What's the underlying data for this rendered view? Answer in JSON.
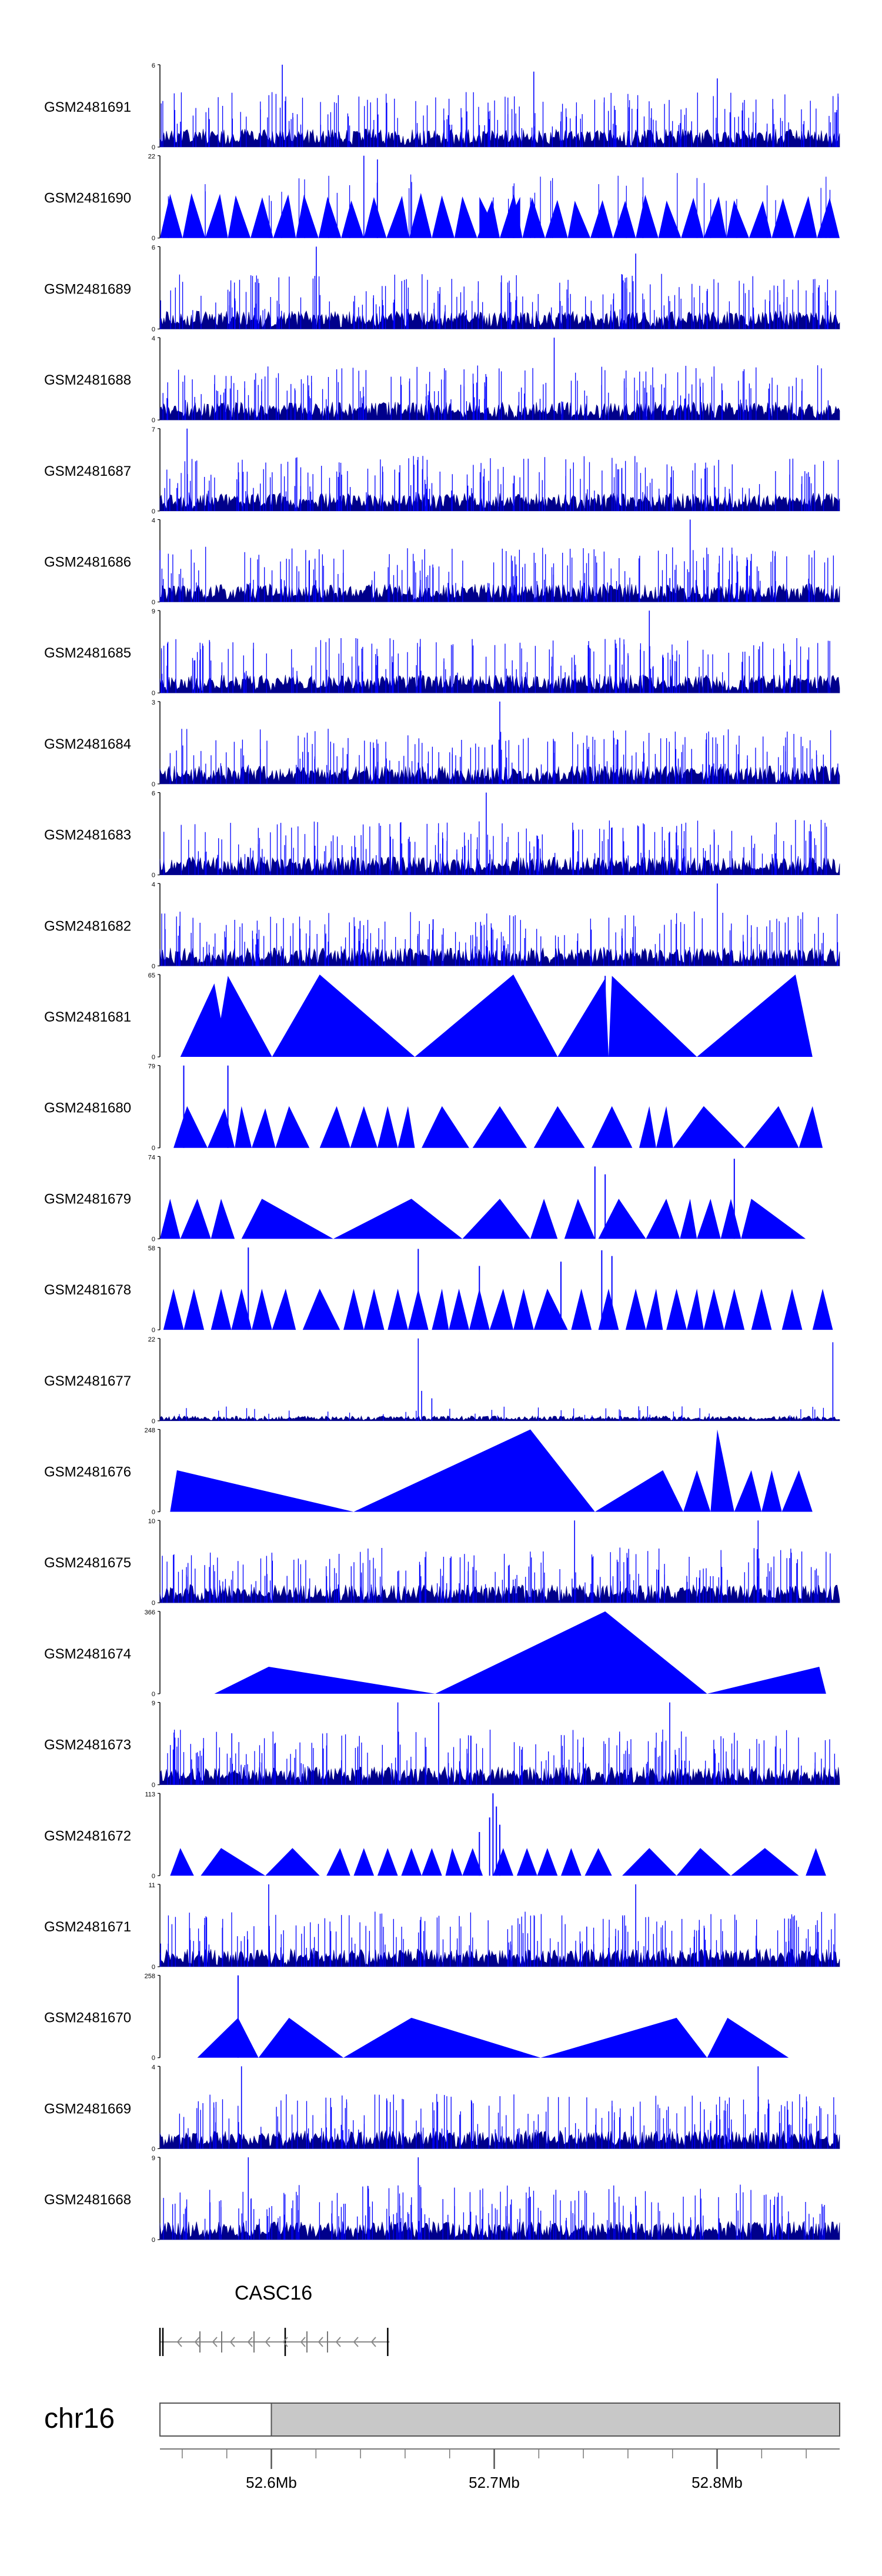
{
  "chart_data": {
    "type": "area",
    "title": "",
    "tracks": [
      {
        "name": "GSM2481691",
        "ymax": "6",
        "ymin": "0",
        "style": "dense",
        "peaks": [
          [
            0.18,
            6
          ],
          [
            0.55,
            5.5
          ],
          [
            0.82,
            5
          ]
        ]
      },
      {
        "name": "GSM2481690",
        "ymax": "22",
        "ymin": "0",
        "style": "sparse",
        "nseg": 30,
        "peaks": [
          [
            0.3,
            22
          ],
          [
            0.32,
            21
          ]
        ],
        "gap": [
          0.47,
          0.53
        ]
      },
      {
        "name": "GSM2481689",
        "ymax": "6",
        "ymin": "0",
        "style": "dense",
        "peaks": [
          [
            0.23,
            6
          ],
          [
            0.7,
            5.5
          ]
        ]
      },
      {
        "name": "GSM2481688",
        "ymax": "4",
        "ymin": "0",
        "style": "dense",
        "peaks": [
          [
            0.58,
            4
          ]
        ]
      },
      {
        "name": "GSM2481687",
        "ymax": "7",
        "ymin": "0",
        "style": "dense",
        "peaks": [
          [
            0.04,
            7
          ]
        ]
      },
      {
        "name": "GSM2481686",
        "ymax": "4",
        "ymin": "0",
        "style": "dense",
        "peaks": [
          [
            0.78,
            4
          ]
        ]
      },
      {
        "name": "GSM2481685",
        "ymax": "9",
        "ymin": "0",
        "style": "dense",
        "peaks": [
          [
            0.72,
            9
          ]
        ]
      },
      {
        "name": "GSM2481684",
        "ymax": "3",
        "ymin": "0",
        "style": "dense",
        "peaks": [
          [
            0.5,
            3
          ]
        ]
      },
      {
        "name": "GSM2481683",
        "ymax": "6",
        "ymin": "0",
        "style": "dense",
        "peaks": [
          [
            0.48,
            6
          ]
        ]
      },
      {
        "name": "GSM2481682",
        "ymax": "4",
        "ymin": "0",
        "style": "dense",
        "peaks": [
          [
            0.82,
            4
          ]
        ]
      },
      {
        "name": "GSM2481681",
        "ymax": "65",
        "ymin": "0",
        "style": "tri",
        "tris": [
          [
            0.03,
            0.08,
            0.1,
            58
          ],
          [
            0.08,
            0.1,
            0.165,
            64
          ],
          [
            0.165,
            0.235,
            0.375,
            65
          ],
          [
            0.375,
            0.52,
            0.585,
            65
          ],
          [
            0.585,
            0.655,
            0.66,
            62
          ],
          [
            0.66,
            0.665,
            0.79,
            64
          ],
          [
            0.79,
            0.935,
            0.96,
            65
          ]
        ],
        "spikes": [
          [
            0.655,
            64
          ]
        ]
      },
      {
        "name": "GSM2481680",
        "ymax": "79",
        "ymin": "0",
        "style": "tri",
        "tris": [
          [
            0.02,
            0.04,
            0.07,
            40
          ],
          [
            0.07,
            0.095,
            0.11,
            38
          ],
          [
            0.11,
            0.12,
            0.135,
            40
          ],
          [
            0.135,
            0.155,
            0.17,
            38
          ],
          [
            0.17,
            0.19,
            0.22,
            40
          ],
          [
            0.235,
            0.26,
            0.28,
            40
          ],
          [
            0.28,
            0.3,
            0.32,
            40
          ],
          [
            0.32,
            0.335,
            0.35,
            40
          ],
          [
            0.35,
            0.365,
            0.375,
            40
          ],
          [
            0.385,
            0.415,
            0.455,
            40
          ],
          [
            0.46,
            0.5,
            0.54,
            40
          ],
          [
            0.55,
            0.585,
            0.625,
            40
          ],
          [
            0.635,
            0.665,
            0.695,
            40
          ],
          [
            0.705,
            0.72,
            0.73,
            40
          ],
          [
            0.73,
            0.745,
            0.755,
            40
          ],
          [
            0.755,
            0.8,
            0.86,
            40
          ],
          [
            0.86,
            0.91,
            0.94,
            40
          ],
          [
            0.94,
            0.96,
            0.975,
            40
          ]
        ],
        "spikes": [
          [
            0.035,
            79
          ],
          [
            0.1,
            79
          ]
        ]
      },
      {
        "name": "GSM2481679",
        "ymax": "74",
        "ymin": "0",
        "style": "tri",
        "tris": [
          [
            0.0,
            0.015,
            0.03,
            36
          ],
          [
            0.03,
            0.055,
            0.075,
            36
          ],
          [
            0.075,
            0.09,
            0.11,
            36
          ],
          [
            0.12,
            0.15,
            0.255,
            36
          ],
          [
            0.255,
            0.37,
            0.445,
            36
          ],
          [
            0.445,
            0.5,
            0.545,
            36
          ],
          [
            0.545,
            0.565,
            0.585,
            36
          ],
          [
            0.595,
            0.615,
            0.64,
            36
          ],
          [
            0.645,
            0.675,
            0.715,
            36
          ],
          [
            0.715,
            0.745,
            0.765,
            36
          ],
          [
            0.765,
            0.78,
            0.79,
            36
          ],
          [
            0.79,
            0.81,
            0.825,
            36
          ],
          [
            0.825,
            0.84,
            0.855,
            36
          ],
          [
            0.855,
            0.87,
            0.95,
            36
          ]
        ],
        "spikes": [
          [
            0.64,
            65
          ],
          [
            0.655,
            58
          ],
          [
            0.845,
            72
          ]
        ]
      },
      {
        "name": "GSM2481678",
        "ymax": "58",
        "ymin": "0",
        "style": "tri",
        "tris": [
          [
            0.005,
            0.02,
            0.035,
            29
          ],
          [
            0.035,
            0.05,
            0.065,
            29
          ],
          [
            0.075,
            0.09,
            0.105,
            29
          ],
          [
            0.105,
            0.12,
            0.135,
            29
          ],
          [
            0.135,
            0.15,
            0.165,
            29
          ],
          [
            0.165,
            0.185,
            0.2,
            29
          ],
          [
            0.21,
            0.235,
            0.265,
            29
          ],
          [
            0.27,
            0.285,
            0.3,
            29
          ],
          [
            0.3,
            0.315,
            0.33,
            29
          ],
          [
            0.335,
            0.35,
            0.365,
            29
          ],
          [
            0.365,
            0.38,
            0.395,
            29
          ],
          [
            0.4,
            0.415,
            0.425,
            29
          ],
          [
            0.425,
            0.44,
            0.455,
            29
          ],
          [
            0.455,
            0.47,
            0.485,
            29
          ],
          [
            0.485,
            0.505,
            0.52,
            29
          ],
          [
            0.52,
            0.535,
            0.55,
            29
          ],
          [
            0.55,
            0.57,
            0.6,
            29
          ],
          [
            0.605,
            0.62,
            0.635,
            29
          ],
          [
            0.645,
            0.66,
            0.675,
            29
          ],
          [
            0.685,
            0.7,
            0.715,
            29
          ],
          [
            0.715,
            0.73,
            0.74,
            29
          ],
          [
            0.745,
            0.76,
            0.775,
            29
          ],
          [
            0.775,
            0.79,
            0.8,
            29
          ],
          [
            0.8,
            0.815,
            0.83,
            29
          ],
          [
            0.83,
            0.845,
            0.86,
            29
          ],
          [
            0.87,
            0.885,
            0.9,
            29
          ],
          [
            0.915,
            0.93,
            0.945,
            29
          ],
          [
            0.96,
            0.975,
            0.99,
            29
          ]
        ],
        "spikes": [
          [
            0.13,
            58
          ],
          [
            0.38,
            57
          ],
          [
            0.47,
            45
          ],
          [
            0.59,
            48
          ],
          [
            0.65,
            56
          ],
          [
            0.665,
            52
          ]
        ]
      },
      {
        "name": "GSM2481677",
        "ymax": "22",
        "ymin": "0",
        "style": "low",
        "peaks": [
          [
            0.38,
            22
          ],
          [
            0.385,
            8
          ],
          [
            0.4,
            6
          ],
          [
            0.99,
            21
          ]
        ]
      },
      {
        "name": "GSM2481676",
        "ymax": "248",
        "ymin": "0",
        "style": "tri",
        "tris": [
          [
            0.015,
            0.025,
            0.285,
            125
          ],
          [
            0.285,
            0.545,
            0.64,
            248
          ],
          [
            0.64,
            0.74,
            0.77,
            125
          ],
          [
            0.77,
            0.79,
            0.81,
            125
          ],
          [
            0.81,
            0.82,
            0.845,
            248
          ],
          [
            0.845,
            0.87,
            0.885,
            125
          ],
          [
            0.885,
            0.9,
            0.915,
            125
          ],
          [
            0.915,
            0.94,
            0.96,
            125
          ]
        ],
        "spikes": []
      },
      {
        "name": "GSM2481675",
        "ymax": "10",
        "ymin": "0",
        "style": "dense",
        "peaks": [
          [
            0.61,
            10
          ],
          [
            0.88,
            10
          ]
        ]
      },
      {
        "name": "GSM2481674",
        "ymax": "366",
        "ymin": "0",
        "style": "tri",
        "tris": [
          [
            0.08,
            0.16,
            0.405,
            120
          ],
          [
            0.405,
            0.655,
            0.805,
            366
          ],
          [
            0.805,
            0.97,
            0.98,
            120
          ]
        ],
        "spikes": []
      },
      {
        "name": "GSM2481673",
        "ymax": "9",
        "ymin": "0",
        "style": "dense",
        "peaks": [
          [
            0.35,
            9
          ],
          [
            0.41,
            9
          ],
          [
            0.75,
            9
          ]
        ]
      },
      {
        "name": "GSM2481672",
        "ymax": "113",
        "ymin": "0",
        "style": "tri",
        "tris": [
          [
            0.015,
            0.03,
            0.05,
            38
          ],
          [
            0.06,
            0.09,
            0.155,
            38
          ],
          [
            0.155,
            0.195,
            0.235,
            38
          ],
          [
            0.245,
            0.265,
            0.28,
            38
          ],
          [
            0.285,
            0.3,
            0.315,
            38
          ],
          [
            0.32,
            0.335,
            0.35,
            38
          ],
          [
            0.355,
            0.37,
            0.385,
            38
          ],
          [
            0.385,
            0.4,
            0.415,
            38
          ],
          [
            0.42,
            0.43,
            0.445,
            38
          ],
          [
            0.445,
            0.46,
            0.475,
            38
          ],
          [
            0.49,
            0.505,
            0.52,
            38
          ],
          [
            0.525,
            0.54,
            0.555,
            38
          ],
          [
            0.555,
            0.57,
            0.585,
            38
          ],
          [
            0.59,
            0.605,
            0.62,
            38
          ],
          [
            0.625,
            0.645,
            0.665,
            38
          ],
          [
            0.68,
            0.72,
            0.76,
            38
          ],
          [
            0.76,
            0.795,
            0.84,
            38
          ],
          [
            0.84,
            0.89,
            0.94,
            38
          ],
          [
            0.95,
            0.965,
            0.98,
            38
          ]
        ],
        "spikes": [
          [
            0.485,
            80
          ],
          [
            0.49,
            113
          ],
          [
            0.495,
            95
          ],
          [
            0.5,
            70
          ],
          [
            0.47,
            60
          ]
        ]
      },
      {
        "name": "GSM2481671",
        "ymax": "11",
        "ymin": "0",
        "style": "dense",
        "peaks": [
          [
            0.16,
            11
          ],
          [
            0.7,
            11
          ]
        ]
      },
      {
        "name": "GSM2481670",
        "ymax": "258",
        "ymin": "0",
        "style": "tri",
        "tris": [
          [
            0.055,
            0.115,
            0.145,
            125
          ],
          [
            0.145,
            0.19,
            0.27,
            125
          ],
          [
            0.27,
            0.37,
            0.56,
            125
          ],
          [
            0.56,
            0.76,
            0.805,
            125
          ],
          [
            0.805,
            0.835,
            0.925,
            125
          ]
        ],
        "spikes": [
          [
            0.115,
            258
          ]
        ]
      },
      {
        "name": "GSM2481669",
        "ymax": "4",
        "ymin": "0",
        "style": "dense",
        "peaks": [
          [
            0.12,
            4
          ],
          [
            0.88,
            4
          ]
        ]
      },
      {
        "name": "GSM2481668",
        "ymax": "9",
        "ymin": "0",
        "style": "dense",
        "peaks": [
          [
            0.13,
            9
          ],
          [
            0.38,
            9
          ]
        ]
      }
    ],
    "gene": {
      "name": "CASC16",
      "start_mb": 52.55,
      "end_mb": 52.653
    },
    "chromosome": "chr16",
    "xaxis": {
      "range_mb": [
        52.55,
        52.855
      ],
      "highlight_start_mb": 52.6,
      "ticks": [
        {
          "value": 52.6,
          "label": "52.6Mb"
        },
        {
          "value": 52.7,
          "label": "52.7Mb"
        },
        {
          "value": 52.8,
          "label": "52.8Mb"
        }
      ],
      "minor_step_mb": 0.02
    },
    "colors": {
      "signal": "#0000ff",
      "signal_dense": "#00008b",
      "axis": "#000000",
      "ideogram_fill": "#c8c8c8",
      "label": "#000000"
    }
  }
}
